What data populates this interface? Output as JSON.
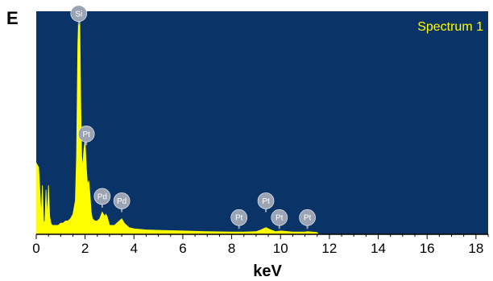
{
  "panel_label": "E",
  "colors": {
    "plot_background": "#0a3468",
    "spectrum_fill": "#ffff00",
    "legend_text": "#ffff00",
    "peak_marker": "#9aa4b4",
    "axis": "#000000"
  },
  "chart_data": {
    "type": "area",
    "title": "",
    "legend": {
      "entries": [
        "Spectrum 1"
      ],
      "placement": "top-right"
    },
    "xlabel": "keV",
    "ylabel": "",
    "xlim": [
      0,
      18.5
    ],
    "ylim": [
      0,
      1
    ],
    "xticks": [
      0,
      2,
      4,
      6,
      8,
      10,
      12,
      14,
      16,
      18
    ],
    "grid": false,
    "series": [
      {
        "name": "Spectrum 1",
        "x": [
          0,
          0.1,
          0.15,
          0.2,
          0.25,
          0.3,
          0.35,
          0.4,
          0.45,
          0.5,
          0.55,
          0.6,
          0.65,
          0.7,
          0.8,
          0.9,
          1.0,
          1.1,
          1.2,
          1.3,
          1.4,
          1.5,
          1.6,
          1.65,
          1.7,
          1.74,
          1.78,
          1.82,
          1.86,
          1.9,
          1.95,
          2.0,
          2.05,
          2.1,
          2.15,
          2.2,
          2.25,
          2.3,
          2.4,
          2.5,
          2.6,
          2.7,
          2.75,
          2.8,
          2.85,
          2.9,
          2.95,
          3.0,
          3.1,
          3.2,
          3.3,
          3.4,
          3.5,
          3.6,
          3.7,
          3.8,
          4.0,
          4.5,
          5.0,
          6.0,
          7.0,
          8.0,
          8.5,
          9.0,
          9.2,
          9.4,
          9.6,
          9.8,
          10.0,
          10.5,
          11.0,
          11.1,
          11.3,
          11.5,
          11.55
        ],
        "y": [
          0.32,
          0.3,
          0.2,
          0.08,
          0.22,
          0.06,
          0.05,
          0.2,
          0.07,
          0.22,
          0.08,
          0.05,
          0.04,
          0.04,
          0.04,
          0.04,
          0.05,
          0.05,
          0.06,
          0.06,
          0.07,
          0.09,
          0.15,
          0.35,
          0.85,
          1.0,
          0.98,
          0.6,
          0.35,
          0.3,
          0.38,
          0.42,
          0.3,
          0.22,
          0.24,
          0.18,
          0.1,
          0.07,
          0.06,
          0.06,
          0.07,
          0.1,
          0.09,
          0.08,
          0.09,
          0.08,
          0.06,
          0.04,
          0.04,
          0.04,
          0.05,
          0.06,
          0.07,
          0.05,
          0.04,
          0.03,
          0.025,
          0.02,
          0.018,
          0.015,
          0.012,
          0.01,
          0.01,
          0.012,
          0.02,
          0.03,
          0.02,
          0.012,
          0.015,
          0.01,
          0.01,
          0.012,
          0.01,
          0.008,
          0
        ]
      }
    ],
    "peak_labels": [
      {
        "text": "Si",
        "x": 1.74,
        "y": 0.99
      },
      {
        "text": "Pt",
        "x": 2.05,
        "y": 0.45
      },
      {
        "text": "Pd",
        "x": 2.7,
        "y": 0.17
      },
      {
        "text": "Pd",
        "x": 3.5,
        "y": 0.15
      },
      {
        "text": "Pt",
        "x": 8.3,
        "y": 0.075
      },
      {
        "text": "Pt",
        "x": 9.4,
        "y": 0.15
      },
      {
        "text": "Pt",
        "x": 9.95,
        "y": 0.075
      },
      {
        "text": "Pt",
        "x": 11.1,
        "y": 0.075
      }
    ]
  }
}
